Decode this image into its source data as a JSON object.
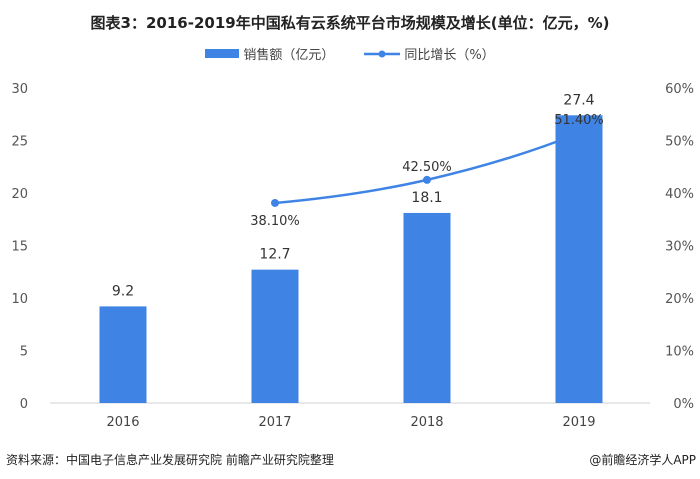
{
  "chart_data": {
    "type": "bar+line",
    "title": "图表3：2016-2019年中国私有云系统平台市场规模及增长(单位：亿元，%)",
    "categories": [
      "2016",
      "2017",
      "2018",
      "2019"
    ],
    "series": [
      {
        "name": "销售额（亿元）",
        "type": "bar",
        "axis": "left",
        "color": "#3f84e5",
        "values": [
          9.2,
          12.7,
          18.1,
          27.4
        ],
        "labels": [
          "9.2",
          "12.7",
          "18.1",
          "27.4"
        ]
      },
      {
        "name": "同比增长（%）",
        "type": "line",
        "axis": "right",
        "color": "#3f84e5",
        "values": [
          null,
          38.1,
          42.5,
          51.4
        ],
        "labels": [
          "",
          "38.10%",
          "42.50%",
          "51.40%"
        ]
      }
    ],
    "ylim": [
      0,
      30
    ],
    "yticks": [
      "0",
      "5",
      "10",
      "15",
      "20",
      "25",
      "30"
    ],
    "y2lim": [
      0,
      60
    ],
    "y2ticks": [
      "0%",
      "10%",
      "20%",
      "30%",
      "40%",
      "50%",
      "60%"
    ],
    "legend": "top-center"
  },
  "footer": {
    "source": "资料来源：中国电子信息产业发展研究院 前瞻产业研究院整理",
    "brand": "@前瞻经济学人APP"
  }
}
